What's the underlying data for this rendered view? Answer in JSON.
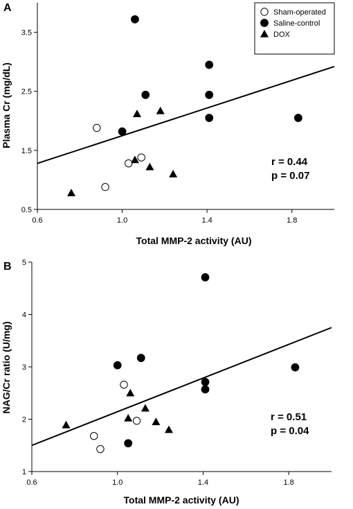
{
  "legend": [
    {
      "label": "Sham-operated",
      "marker": "open-circle"
    },
    {
      "label": "Saline-control",
      "marker": "filled-circle"
    },
    {
      "label": "DOX",
      "marker": "filled-triangle"
    }
  ],
  "chart_data": [
    {
      "panel": "A",
      "type": "scatter",
      "xlabel": "Total MMP-2 activity (AU)",
      "ylabel": "Plasma Cr (mg/dL)",
      "xlim": [
        0.6,
        2.0
      ],
      "ylim": [
        0.5,
        4.0
      ],
      "xticks": [
        "0.6",
        "1.0",
        "1.4",
        "1.8"
      ],
      "xtick_values": [
        0.6,
        1.0,
        1.4,
        1.8
      ],
      "yticks": [
        "0.5",
        "1.5",
        "2.5",
        "3.5"
      ],
      "ytick_values": [
        0.5,
        1.5,
        2.5,
        3.5
      ],
      "series": [
        {
          "name": "Sham-operated",
          "marker": "open-circle",
          "points": [
            [
              0.88,
              1.88
            ],
            [
              0.92,
              0.88
            ],
            [
              1.03,
              1.28
            ],
            [
              1.09,
              1.38
            ]
          ]
        },
        {
          "name": "Saline-control",
          "marker": "filled-circle",
          "points": [
            [
              1.06,
              3.72
            ],
            [
              1.0,
              1.82
            ],
            [
              1.11,
              2.44
            ],
            [
              1.41,
              2.95
            ],
            [
              1.41,
              2.44
            ],
            [
              1.41,
              2.05
            ],
            [
              1.83,
              2.05
            ]
          ]
        },
        {
          "name": "DOX",
          "marker": "filled-triangle",
          "points": [
            [
              0.76,
              0.78
            ],
            [
              1.06,
              1.34
            ],
            [
              1.07,
              2.12
            ],
            [
              1.13,
              1.22
            ],
            [
              1.18,
              2.17
            ],
            [
              1.24,
              1.1
            ]
          ]
        }
      ],
      "regression": {
        "x": [
          0.6,
          2.0
        ],
        "y": [
          1.28,
          2.92
        ]
      },
      "annotations": [
        "r = 0.44",
        "p = 0.07"
      ]
    },
    {
      "panel": "B",
      "type": "scatter",
      "xlabel": "Total MMP-2 activity (AU)",
      "ylabel": "NAG/Cr ratio (U/mg)",
      "xlim": [
        0.6,
        2.0
      ],
      "ylim": [
        1,
        5
      ],
      "xticks": [
        "0.6",
        "1.0",
        "1.4",
        "1.8"
      ],
      "xtick_values": [
        0.6,
        1.0,
        1.4,
        1.8
      ],
      "yticks": [
        "1",
        "2",
        "3",
        "4",
        "5"
      ],
      "ytick_values": [
        1,
        2,
        3,
        4,
        5
      ],
      "series": [
        {
          "name": "Sham-operated",
          "marker": "open-circle",
          "points": [
            [
              0.89,
              1.68
            ],
            [
              0.92,
              1.43
            ],
            [
              1.03,
              2.66
            ],
            [
              1.09,
              1.97
            ]
          ]
        },
        {
          "name": "Saline-control",
          "marker": "filled-circle",
          "points": [
            [
              1.0,
              3.03
            ],
            [
              1.05,
              1.54
            ],
            [
              1.11,
              3.17
            ],
            [
              1.41,
              4.71
            ],
            [
              1.41,
              2.71
            ],
            [
              1.41,
              2.57
            ],
            [
              1.83,
              2.99
            ]
          ]
        },
        {
          "name": "DOX",
          "marker": "filled-triangle",
          "points": [
            [
              0.76,
              1.89
            ],
            [
              1.05,
              2.02
            ],
            [
              1.06,
              2.5
            ],
            [
              1.13,
              2.21
            ],
            [
              1.18,
              1.95
            ],
            [
              1.24,
              1.8
            ]
          ]
        }
      ],
      "regression": {
        "x": [
          0.6,
          2.0
        ],
        "y": [
          1.5,
          3.75
        ]
      },
      "annotations": [
        "r = 0.51",
        "p = 0.04"
      ]
    }
  ]
}
